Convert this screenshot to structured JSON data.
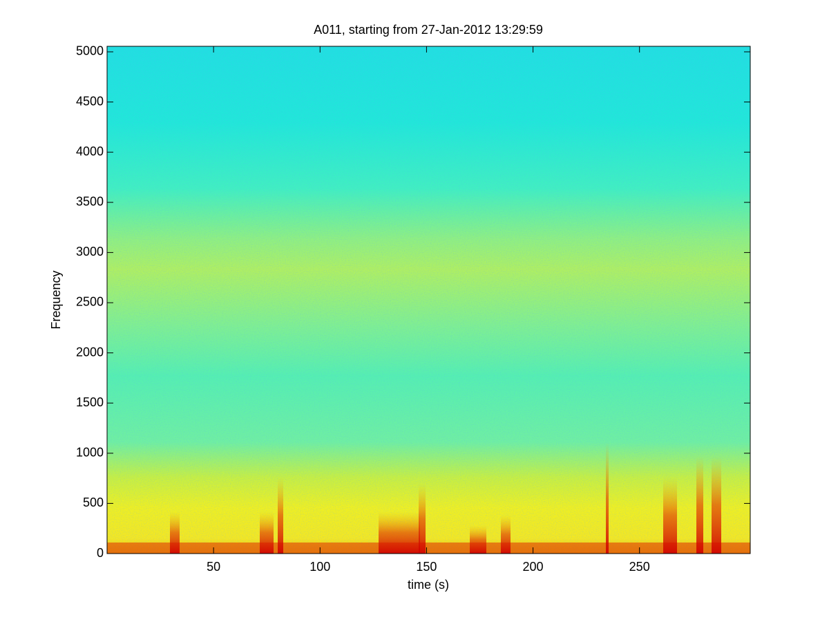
{
  "chart_data": {
    "type": "spectrogram",
    "title": "A011, starting from 27-Jan-2012 13:29:59",
    "xlabel": "time (s)",
    "ylabel": "Frequency",
    "xlim": [
      0,
      302
    ],
    "xticks": [
      50,
      100,
      150,
      200,
      250
    ],
    "ylim": [
      0,
      5055
    ],
    "yticks": [
      0,
      500,
      1000,
      1500,
      2000,
      2500,
      3000,
      3500,
      4000,
      4500,
      5000
    ]
  }
}
